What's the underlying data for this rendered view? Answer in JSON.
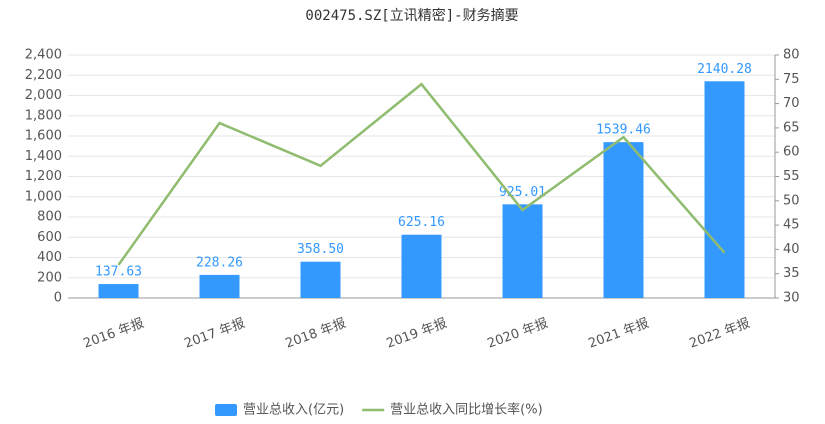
{
  "chart_data": {
    "type": "bar-line",
    "title": "002475.SZ[立讯精密]-财务摘要",
    "categories": [
      "2016 年报",
      "2017 年报",
      "2018 年报",
      "2019 年报",
      "2020 年报",
      "2021 年报",
      "2022 年报"
    ],
    "series": [
      {
        "name": "营业总收入(亿元)",
        "type": "bar",
        "color": "#3399ff",
        "values": [
          137.63,
          228.26,
          358.5,
          625.16,
          925.01,
          1539.46,
          2140.28
        ],
        "value_labels": [
          "137.63",
          "228.26",
          "358.50",
          "625.16",
          "925.01",
          "1539.46",
          "2140.28"
        ]
      },
      {
        "name": "营业总收入同比增长率(%)",
        "type": "line",
        "axis": "y2",
        "color": "#8fbc6f",
        "values": [
          36.8,
          66.0,
          57.2,
          74.0,
          48.1,
          63.1,
          39.3
        ]
      }
    ],
    "ylim": [
      0,
      2400
    ],
    "yticks": [
      0,
      200,
      400,
      600,
      800,
      {
        "value": 1000,
        "label": "1,000"
      },
      {
        "value": 1200,
        "label": "1,200"
      },
      {
        "value": 1400,
        "label": "1,400"
      },
      {
        "value": 1600,
        "label": "1,600"
      },
      {
        "value": 1800,
        "label": "1,800"
      },
      {
        "value": 2000,
        "label": "2,000"
      },
      {
        "value": 2200,
        "label": "2,200"
      },
      {
        "value": 2400,
        "label": "2,400"
      }
    ],
    "y2lim": [
      30,
      80
    ],
    "y2ticks": [
      30,
      35,
      40,
      45,
      50,
      55,
      60,
      65,
      70,
      75,
      80
    ],
    "grid": true
  }
}
